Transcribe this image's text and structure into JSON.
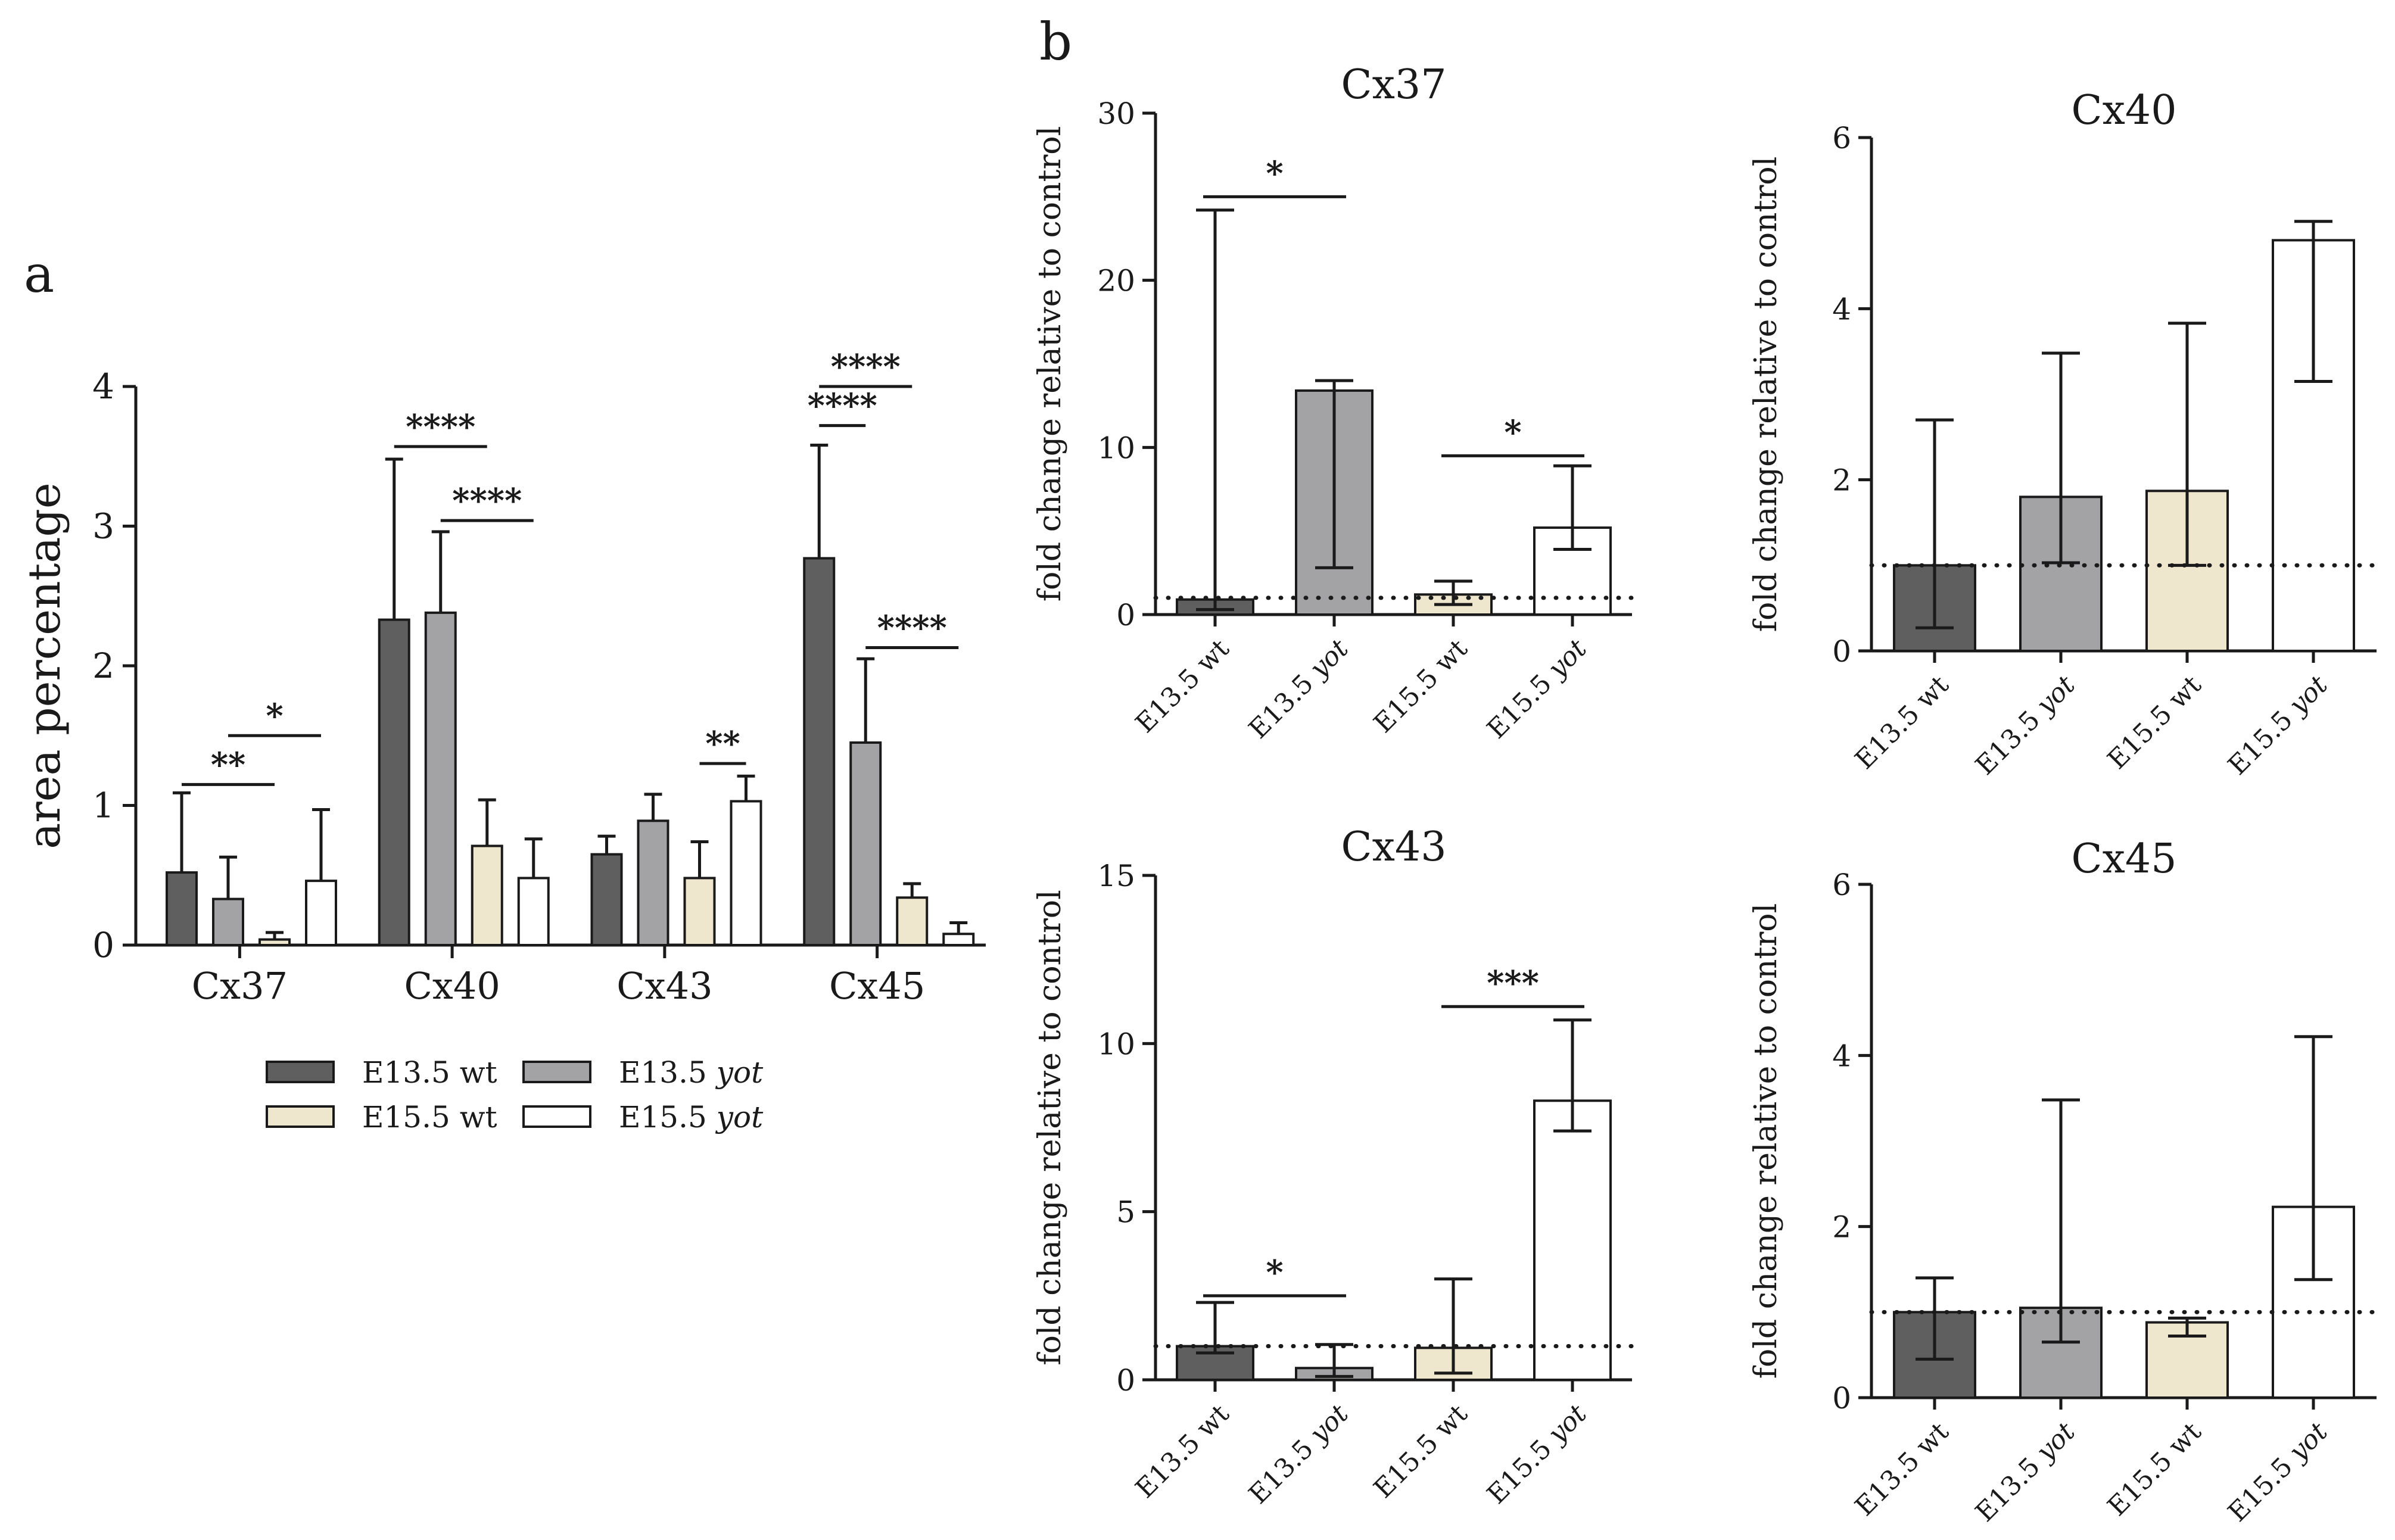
{
  "panel_labels": {
    "a": "a",
    "b": "b"
  },
  "colors": {
    "E13.5 wt": "#5f5f5f",
    "E13.5 yot": "#a3a3a5",
    "E15.5 wt": "#efe7cd",
    "E15.5 yot": "#ffffff",
    "stroke": "#1a1a1a"
  },
  "legend": {
    "items": [
      {
        "prefix": "E13.5 wt",
        "suffix": "",
        "key": "E13.5 wt"
      },
      {
        "prefix": "E13.5 ",
        "suffix": "yot",
        "key": "E13.5 yot"
      },
      {
        "prefix": "E15.5 wt",
        "suffix": "",
        "key": "E15.5 wt"
      },
      {
        "prefix": "E15.5 ",
        "suffix": "yot",
        "key": "E15.5 yot"
      }
    ]
  },
  "chart_data": [
    {
      "id": "a",
      "type": "bar",
      "title": "",
      "xlabel": "",
      "ylabel": "area percentage",
      "ylim": [
        0,
        4
      ],
      "yticks": [
        0,
        1,
        2,
        3,
        4
      ],
      "categories": [
        "Cx37",
        "Cx40",
        "Cx43",
        "Cx45"
      ],
      "series": [
        {
          "name": "E13.5 wt",
          "values": [
            0.52,
            2.33,
            0.65,
            2.77
          ],
          "err_hi": [
            1.09,
            3.48,
            0.78,
            3.58
          ],
          "err_lo": [
            0.52,
            2.33,
            0.65,
            2.77
          ]
        },
        {
          "name": "E13.5 yot",
          "values": [
            0.33,
            2.38,
            0.89,
            1.45
          ],
          "err_hi": [
            0.63,
            2.96,
            1.08,
            2.05
          ],
          "err_lo": [
            0.33,
            2.38,
            0.89,
            1.45
          ]
        },
        {
          "name": "E15.5 wt",
          "values": [
            0.04,
            0.71,
            0.48,
            0.34
          ],
          "err_hi": [
            0.09,
            1.04,
            0.74,
            0.44
          ],
          "err_lo": [
            0.04,
            0.71,
            0.48,
            0.34
          ]
        },
        {
          "name": "E15.5 yot",
          "values": [
            0.46,
            0.48,
            1.03,
            0.08
          ],
          "err_hi": [
            0.97,
            0.76,
            1.21,
            0.16
          ],
          "err_lo": [
            0.46,
            0.48,
            1.03,
            0.08
          ]
        }
      ],
      "significance": [
        {
          "cat": 0,
          "from": 0,
          "to": 2,
          "label": "**",
          "y": 1.15
        },
        {
          "cat": 0,
          "from": 1,
          "to": 3,
          "label": "*",
          "y": 1.5
        },
        {
          "cat": 1,
          "from": 0,
          "to": 2,
          "label": "****",
          "y": 3.57
        },
        {
          "cat": 1,
          "from": 1,
          "to": 3,
          "label": "****",
          "y": 3.04
        },
        {
          "cat": 2,
          "from": 2,
          "to": 3,
          "label": "**",
          "y": 1.3
        },
        {
          "cat": 3,
          "from": 0,
          "to": 1,
          "label": "****",
          "y": 3.72
        },
        {
          "cat": 3,
          "from": 0,
          "to": 2,
          "label": "****",
          "y": 4.0
        },
        {
          "cat": 3,
          "from": 1,
          "to": 3,
          "label": "****",
          "y": 2.13
        }
      ]
    },
    {
      "id": "b-cx37",
      "type": "bar",
      "title": "Cx37",
      "ylabel": "fold change relative to control",
      "ylim": [
        0,
        30
      ],
      "yticks": [
        0,
        10,
        20,
        30
      ],
      "reference_line": 1,
      "categories": [
        {
          "prefix": "E13.5 wt",
          "suffix": ""
        },
        {
          "prefix": "E13.5 ",
          "suffix": "yot"
        },
        {
          "prefix": "E15.5 wt",
          "suffix": ""
        },
        {
          "prefix": "E15.5 ",
          "suffix": "yot"
        }
      ],
      "values": [
        0.9,
        13.4,
        1.2,
        5.2
      ],
      "err_lo": [
        0.3,
        2.8,
        0.6,
        3.9
      ],
      "err_hi": [
        24.2,
        14.0,
        2.0,
        8.9
      ],
      "significance": [
        {
          "from": 0,
          "to": 1,
          "label": "*",
          "y": 25.0
        },
        {
          "from": 2,
          "to": 3,
          "label": "*",
          "y": 9.5
        }
      ]
    },
    {
      "id": "b-cx40",
      "type": "bar",
      "title": "Cx40",
      "ylabel": "fold change relative to control",
      "ylim": [
        0,
        6
      ],
      "yticks": [
        0,
        2,
        4,
        6
      ],
      "reference_line": 1,
      "categories": [
        {
          "prefix": "E13.5 wt",
          "suffix": ""
        },
        {
          "prefix": "E13.5 ",
          "suffix": "yot"
        },
        {
          "prefix": "E15.5 wt",
          "suffix": ""
        },
        {
          "prefix": "E15.5 ",
          "suffix": "yot"
        }
      ],
      "values": [
        1.0,
        1.8,
        1.87,
        4.8
      ],
      "err_lo": [
        0.27,
        1.03,
        1.0,
        3.15
      ],
      "err_hi": [
        2.7,
        3.48,
        3.83,
        5.02
      ],
      "significance": []
    },
    {
      "id": "b-cx43",
      "type": "bar",
      "title": "Cx43",
      "ylabel": "fold change relative to control",
      "ylim": [
        0,
        15
      ],
      "yticks": [
        0,
        5,
        10,
        15
      ],
      "reference_line": 1,
      "categories": [
        {
          "prefix": "E13.5 wt",
          "suffix": ""
        },
        {
          "prefix": "E13.5 ",
          "suffix": "yot"
        },
        {
          "prefix": "E15.5 wt",
          "suffix": ""
        },
        {
          "prefix": "E15.5 ",
          "suffix": "yot"
        }
      ],
      "values": [
        1.0,
        0.35,
        0.95,
        8.3
      ],
      "err_lo": [
        0.8,
        0.1,
        0.2,
        7.4
      ],
      "err_hi": [
        2.3,
        1.05,
        3.0,
        10.7
      ],
      "significance": [
        {
          "from": 0,
          "to": 1,
          "label": "*",
          "y": 2.5
        },
        {
          "from": 2,
          "to": 3,
          "label": "***",
          "y": 11.1
        }
      ]
    },
    {
      "id": "b-cx45",
      "type": "bar",
      "title": "Cx45",
      "ylabel": "fold change relative to control",
      "ylim": [
        0,
        6
      ],
      "yticks": [
        0,
        2,
        4,
        6
      ],
      "reference_line": 1,
      "categories": [
        {
          "prefix": "E13.5 wt",
          "suffix": ""
        },
        {
          "prefix": "E13.5 ",
          "suffix": "yot"
        },
        {
          "prefix": "E15.5 wt",
          "suffix": ""
        },
        {
          "prefix": "E15.5 ",
          "suffix": "yot"
        }
      ],
      "values": [
        1.0,
        1.05,
        0.88,
        2.23
      ],
      "err_lo": [
        0.45,
        0.65,
        0.72,
        1.38
      ],
      "err_hi": [
        1.4,
        3.48,
        0.93,
        4.22
      ],
      "significance": []
    }
  ]
}
